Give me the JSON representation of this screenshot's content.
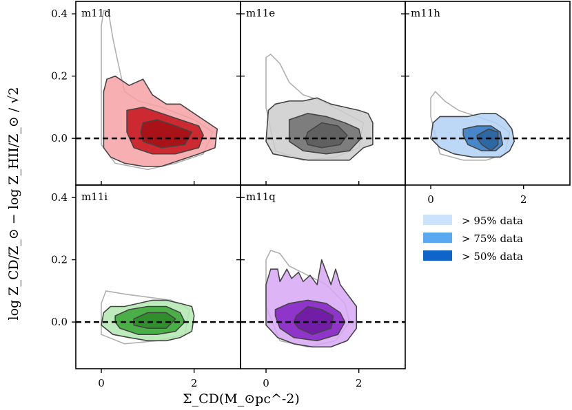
{
  "figure": {
    "xlabel": "Σ_CD(M_⊙pc^-2)",
    "ylabel": "log Z_CD/Z_⊙ − log Z_HII/Z_⊙ / √2"
  },
  "chart_data": {
    "type": "contour",
    "xlim": [
      -0.55,
      3.0
    ],
    "ylim": [
      -0.15,
      0.44
    ],
    "xticks": [
      0,
      2
    ],
    "yticks": [
      0.0,
      0.2,
      0.4
    ],
    "reference_line": {
      "y": 0.0,
      "style": "dashed",
      "color": "#000000"
    },
    "legend": [
      {
        "label": "> 95% data",
        "color": "#cce4fb"
      },
      {
        "label": "> 75% data",
        "color": "#5aa8ef"
      },
      {
        "label": "> 50% data",
        "color": "#0e64c8"
      }
    ],
    "panels": [
      {
        "name": "m11d",
        "color": "#e8151d",
        "levels": {
          "p95": [
            [
              0.05,
              0.15
            ],
            [
              0.12,
              0.19
            ],
            [
              0.3,
              0.2
            ],
            [
              0.6,
              0.17
            ],
            [
              0.9,
              0.19
            ],
            [
              1.1,
              0.14
            ],
            [
              1.4,
              0.11
            ],
            [
              1.7,
              0.11
            ],
            [
              2.1,
              0.07
            ],
            [
              2.5,
              0.03
            ],
            [
              2.45,
              -0.03
            ],
            [
              2.1,
              -0.05
            ],
            [
              1.7,
              -0.07
            ],
            [
              1.3,
              -0.09
            ],
            [
              0.9,
              -0.09
            ],
            [
              0.5,
              -0.08
            ],
            [
              0.2,
              -0.06
            ],
            [
              0.05,
              -0.03
            ],
            [
              0.05,
              0.05
            ]
          ],
          "p75": [
            [
              0.55,
              0.09
            ],
            [
              0.9,
              0.1
            ],
            [
              1.3,
              0.08
            ],
            [
              1.7,
              0.06
            ],
            [
              2.1,
              0.04
            ],
            [
              2.2,
              0.01
            ],
            [
              2.1,
              -0.03
            ],
            [
              1.6,
              -0.05
            ],
            [
              1.1,
              -0.05
            ],
            [
              0.7,
              -0.03
            ],
            [
              0.55,
              0.02
            ]
          ],
          "p50": [
            [
              0.9,
              0.05
            ],
            [
              1.2,
              0.06
            ],
            [
              1.6,
              0.04
            ],
            [
              1.95,
              0.02
            ],
            [
              1.8,
              -0.02
            ],
            [
              1.3,
              -0.03
            ],
            [
              0.9,
              -0.01
            ],
            [
              0.85,
              0.02
            ]
          ]
        },
        "outline": [
          [
            0.0,
            0.2
          ],
          [
            0.0,
            0.36
          ],
          [
            0.05,
            0.41
          ],
          [
            0.15,
            0.41
          ],
          [
            0.25,
            0.32
          ],
          [
            0.35,
            0.25
          ],
          [
            0.5,
            0.15
          ],
          [
            0.8,
            0.12
          ],
          [
            1.3,
            0.1
          ],
          [
            2.0,
            0.06
          ],
          [
            2.4,
            0.02
          ],
          [
            2.2,
            -0.05
          ],
          [
            1.6,
            -0.08
          ],
          [
            1.0,
            -0.1
          ],
          [
            0.3,
            -0.08
          ],
          [
            0.0,
            -0.02
          ],
          [
            0.0,
            0.2
          ]
        ]
      },
      {
        "name": "m11e",
        "color": "#808080",
        "levels": {
          "p95": [
            [
              0.05,
              0.09
            ],
            [
              0.2,
              0.11
            ],
            [
              0.5,
              0.12
            ],
            [
              0.8,
              0.12
            ],
            [
              1.1,
              0.13
            ],
            [
              1.4,
              0.11
            ],
            [
              1.7,
              0.1
            ],
            [
              2.0,
              0.09
            ],
            [
              2.2,
              0.08
            ],
            [
              2.3,
              0.05
            ],
            [
              2.3,
              -0.02
            ],
            [
              2.1,
              -0.03
            ],
            [
              1.8,
              -0.07
            ],
            [
              1.4,
              -0.07
            ],
            [
              0.9,
              -0.07
            ],
            [
              0.5,
              -0.06
            ],
            [
              0.15,
              -0.05
            ],
            [
              0.0,
              -0.01
            ],
            [
              0.05,
              0.09
            ]
          ],
          "p75": [
            [
              0.5,
              0.06
            ],
            [
              0.9,
              0.08
            ],
            [
              1.3,
              0.07
            ],
            [
              1.7,
              0.05
            ],
            [
              2.0,
              0.03
            ],
            [
              2.05,
              0.0
            ],
            [
              1.8,
              -0.04
            ],
            [
              1.3,
              -0.05
            ],
            [
              0.8,
              -0.04
            ],
            [
              0.5,
              -0.01
            ],
            [
              0.5,
              0.04
            ]
          ],
          "p50": [
            [
              0.9,
              0.02
            ],
            [
              1.2,
              0.05
            ],
            [
              1.55,
              0.04
            ],
            [
              1.75,
              0.01
            ],
            [
              1.6,
              -0.02
            ],
            [
              1.2,
              -0.03
            ],
            [
              0.9,
              -0.02
            ],
            [
              0.85,
              0.0
            ]
          ]
        },
        "outline": [
          [
            0.0,
            0.1
          ],
          [
            0.0,
            0.26
          ],
          [
            0.1,
            0.27
          ],
          [
            0.3,
            0.24
          ],
          [
            0.5,
            0.18
          ],
          [
            0.8,
            0.14
          ],
          [
            1.2,
            0.12
          ],
          [
            1.6,
            0.09
          ],
          [
            2.1,
            0.05
          ],
          [
            2.0,
            -0.03
          ],
          [
            1.5,
            -0.06
          ],
          [
            0.8,
            -0.07
          ],
          [
            0.2,
            -0.04
          ],
          [
            0.0,
            0.1
          ]
        ]
      },
      {
        "name": "m11h",
        "color": "#3b8de3",
        "levels": {
          "p95": [
            [
              0.05,
              0.05
            ],
            [
              0.2,
              0.07
            ],
            [
              0.5,
              0.07
            ],
            [
              0.8,
              0.07
            ],
            [
              1.1,
              0.08
            ],
            [
              1.4,
              0.08
            ],
            [
              1.6,
              0.06
            ],
            [
              1.75,
              0.03
            ],
            [
              1.8,
              -0.01
            ],
            [
              1.7,
              -0.04
            ],
            [
              1.5,
              -0.06
            ],
            [
              1.2,
              -0.06
            ],
            [
              0.9,
              -0.06
            ],
            [
              0.5,
              -0.05
            ],
            [
              0.2,
              -0.03
            ],
            [
              0.0,
              0.0
            ],
            [
              0.05,
              0.05
            ]
          ],
          "p75": [
            [
              0.7,
              0.03
            ],
            [
              1.0,
              0.04
            ],
            [
              1.3,
              0.04
            ],
            [
              1.5,
              0.02
            ],
            [
              1.55,
              -0.02
            ],
            [
              1.4,
              -0.04
            ],
            [
              1.1,
              -0.04
            ],
            [
              0.8,
              -0.02
            ],
            [
              0.7,
              0.01
            ]
          ],
          "p50": [
            [
              1.0,
              0.01
            ],
            [
              1.25,
              0.03
            ],
            [
              1.45,
              0.02
            ],
            [
              1.45,
              -0.02
            ],
            [
              1.3,
              -0.04
            ],
            [
              1.1,
              -0.02
            ],
            [
              1.0,
              0.0
            ]
          ]
        },
        "outline": [
          [
            0.0,
            0.07
          ],
          [
            0.0,
            0.13
          ],
          [
            0.1,
            0.15
          ],
          [
            0.3,
            0.12
          ],
          [
            0.6,
            0.09
          ],
          [
            1.0,
            0.07
          ],
          [
            1.4,
            0.05
          ],
          [
            1.7,
            0.02
          ],
          [
            1.6,
            -0.05
          ],
          [
            1.2,
            -0.07
          ],
          [
            0.7,
            -0.07
          ],
          [
            0.2,
            -0.05
          ],
          [
            0.0,
            0.07
          ]
        ]
      },
      {
        "name": "m11i",
        "color": "#3fc23a",
        "levels": {
          "p95": [
            [
              0.05,
              0.03
            ],
            [
              0.2,
              0.05
            ],
            [
              0.5,
              0.05
            ],
            [
              0.8,
              0.06
            ],
            [
              1.1,
              0.07
            ],
            [
              1.4,
              0.07
            ],
            [
              1.7,
              0.06
            ],
            [
              1.95,
              0.05
            ],
            [
              2.0,
              0.02
            ],
            [
              1.95,
              -0.03
            ],
            [
              1.7,
              -0.05
            ],
            [
              1.4,
              -0.06
            ],
            [
              1.0,
              -0.06
            ],
            [
              0.6,
              -0.05
            ],
            [
              0.25,
              -0.04
            ],
            [
              0.0,
              -0.01
            ],
            [
              0.05,
              0.03
            ]
          ],
          "p75": [
            [
              0.3,
              0.02
            ],
            [
              0.6,
              0.04
            ],
            [
              1.0,
              0.05
            ],
            [
              1.4,
              0.05
            ],
            [
              1.7,
              0.03
            ],
            [
              1.8,
              0.0
            ],
            [
              1.6,
              -0.03
            ],
            [
              1.2,
              -0.04
            ],
            [
              0.8,
              -0.04
            ],
            [
              0.4,
              -0.02
            ],
            [
              0.3,
              0.0
            ]
          ],
          "p50": [
            [
              0.7,
              0.01
            ],
            [
              1.0,
              0.03
            ],
            [
              1.4,
              0.03
            ],
            [
              1.6,
              0.01
            ],
            [
              1.4,
              -0.02
            ],
            [
              1.0,
              -0.02
            ],
            [
              0.7,
              -0.01
            ]
          ]
        },
        "outline": [
          [
            0.0,
            0.06
          ],
          [
            0.1,
            0.1
          ],
          [
            0.5,
            0.09
          ],
          [
            1.0,
            0.08
          ],
          [
            1.5,
            0.07
          ],
          [
            1.9,
            0.04
          ],
          [
            1.8,
            -0.04
          ],
          [
            1.2,
            -0.06
          ],
          [
            0.5,
            -0.07
          ],
          [
            0.0,
            -0.04
          ],
          [
            0.0,
            0.06
          ]
        ]
      },
      {
        "name": "m11q",
        "color": "#9a24e4",
        "levels": {
          "p95": [
            [
              0.0,
              0.04
            ],
            [
              0.0,
              0.12
            ],
            [
              0.1,
              0.17
            ],
            [
              0.25,
              0.17
            ],
            [
              0.3,
              0.13
            ],
            [
              0.45,
              0.17
            ],
            [
              0.55,
              0.14
            ],
            [
              0.7,
              0.16
            ],
            [
              0.8,
              0.13
            ],
            [
              0.95,
              0.15
            ],
            [
              1.1,
              0.12
            ],
            [
              1.2,
              0.2
            ],
            [
              1.3,
              0.16
            ],
            [
              1.4,
              0.12
            ],
            [
              1.5,
              0.17
            ],
            [
              1.6,
              0.12
            ],
            [
              1.8,
              0.08
            ],
            [
              1.95,
              0.05
            ],
            [
              1.95,
              -0.02
            ],
            [
              1.75,
              -0.06
            ],
            [
              1.4,
              -0.08
            ],
            [
              1.0,
              -0.08
            ],
            [
              0.6,
              -0.07
            ],
            [
              0.25,
              -0.05
            ],
            [
              0.0,
              -0.01
            ],
            [
              0.0,
              0.04
            ]
          ],
          "p75": [
            [
              0.2,
              0.04
            ],
            [
              0.5,
              0.06
            ],
            [
              0.9,
              0.07
            ],
            [
              1.3,
              0.06
            ],
            [
              1.6,
              0.03
            ],
            [
              1.7,
              0.0
            ],
            [
              1.55,
              -0.04
            ],
            [
              1.1,
              -0.06
            ],
            [
              0.6,
              -0.05
            ],
            [
              0.3,
              -0.02
            ],
            [
              0.2,
              0.02
            ]
          ],
          "p50": [
            [
              0.65,
              0.02
            ],
            [
              0.9,
              0.05
            ],
            [
              1.2,
              0.04
            ],
            [
              1.45,
              0.02
            ],
            [
              1.4,
              -0.02
            ],
            [
              1.0,
              -0.04
            ],
            [
              0.7,
              -0.02
            ],
            [
              0.6,
              0.0
            ]
          ]
        },
        "outline": [
          [
            0.0,
            0.05
          ],
          [
            0.0,
            0.2
          ],
          [
            0.1,
            0.23
          ],
          [
            0.3,
            0.22
          ],
          [
            0.5,
            0.18
          ],
          [
            0.9,
            0.15
          ],
          [
            1.3,
            0.12
          ],
          [
            1.7,
            0.06
          ],
          [
            1.8,
            0.0
          ],
          [
            1.5,
            -0.06
          ],
          [
            0.9,
            -0.08
          ],
          [
            0.3,
            -0.06
          ],
          [
            0.0,
            0.05
          ]
        ]
      }
    ]
  }
}
